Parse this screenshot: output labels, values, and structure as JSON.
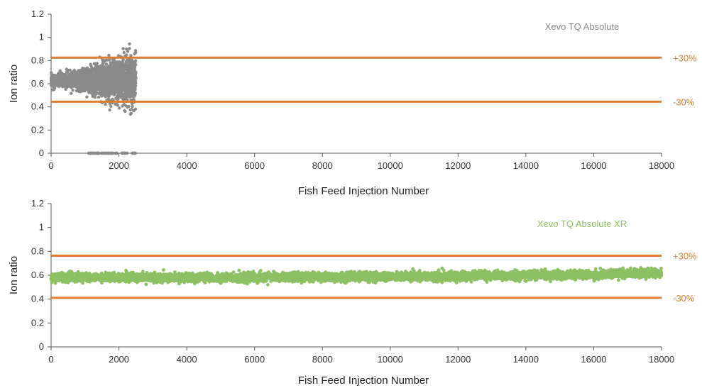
{
  "chart_data": [
    {
      "type": "scatter",
      "series": [
        {
          "name": "Xevo TQ Absolute",
          "color": "#8a8a8a",
          "x_range": [
            0,
            2500
          ],
          "mean_y": 0.63,
          "spread_start": 0.06,
          "spread_end": 0.3,
          "outlier_zero_x_range": [
            1100,
            2500
          ]
        }
      ],
      "xlabel": "Fish Feed Injection Number",
      "ylabel": "Ion ratio",
      "xlim": [
        0,
        18000
      ],
      "ylim": [
        0,
        1.2
      ],
      "xticks": [
        "0",
        "2000",
        "4000",
        "6000",
        "8000",
        "10000",
        "12000",
        "14000",
        "16000",
        "18000"
      ],
      "yticks": [
        "0",
        "0.2",
        "0.4",
        "0.6",
        "0.8",
        "1",
        "1.2"
      ],
      "limits": [
        {
          "label": "+30%",
          "value": 0.825
        },
        {
          "label": "-30%",
          "value": 0.445
        }
      ],
      "limit_color": "#e07b2f",
      "grid": false
    },
    {
      "type": "scatter",
      "series": [
        {
          "name": "Xevo TQ Absolute XR",
          "color": "#8cc063",
          "x_range": [
            0,
            18000
          ],
          "mean_y_start": 0.58,
          "mean_y_end": 0.62,
          "spread": 0.06
        }
      ],
      "xlabel": "Fish Feed Injection Number",
      "ylabel": "Ion ratio",
      "xlim": [
        0,
        18000
      ],
      "ylim": [
        0,
        1.2
      ],
      "xticks": [
        "0",
        "2000",
        "4000",
        "6000",
        "8000",
        "10000",
        "12000",
        "14000",
        "16000",
        "18000"
      ],
      "yticks": [
        "0",
        "0.2",
        "0.4",
        "0.6",
        "0.8",
        "1",
        "1.2"
      ],
      "limits": [
        {
          "label": "+30%",
          "value": 0.763
        },
        {
          "label": "-30%",
          "value": 0.411
        }
      ],
      "limit_color": "#e07b2f",
      "grid": false
    }
  ]
}
